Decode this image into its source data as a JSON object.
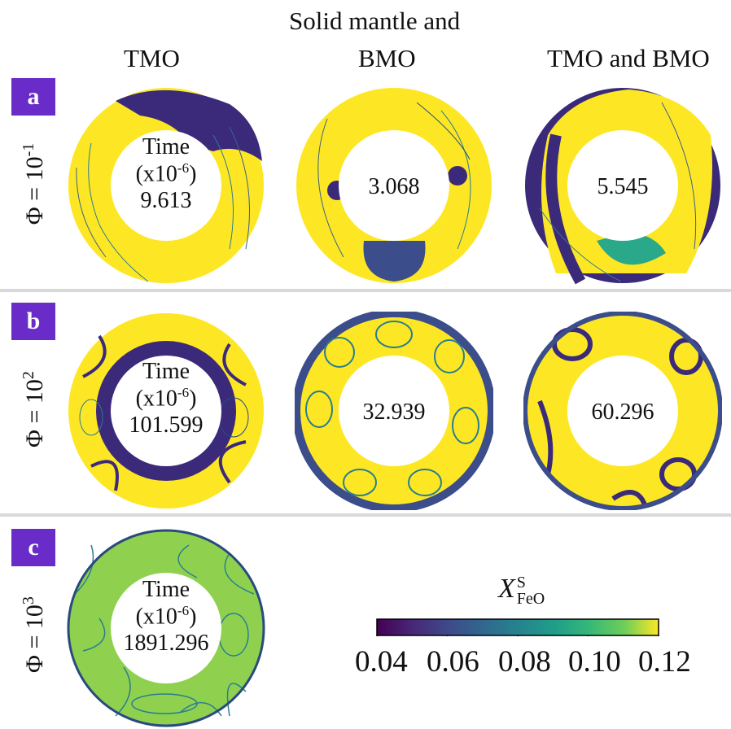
{
  "header": {
    "top_line": "Solid mantle and",
    "columns": [
      "TMO",
      "BMO",
      "TMO and BMO"
    ]
  },
  "rows": [
    {
      "label": "a",
      "phi_prefix": "Φ = 10",
      "phi_exp": "-1",
      "panels": [
        {
          "time_label": "Time",
          "time_units": "(x10",
          "time_units_exp": "-6",
          "time_units_close": ")",
          "value": "9.613"
        },
        {
          "value": "3.068"
        },
        {
          "value": "5.545"
        }
      ]
    },
    {
      "label": "b",
      "phi_prefix": "Φ = 10",
      "phi_exp": "2",
      "panels": [
        {
          "time_label": "Time",
          "time_units": "(x10",
          "time_units_exp": "-6",
          "time_units_close": ")",
          "value": "101.599"
        },
        {
          "value": "32.939"
        },
        {
          "value": "60.296"
        }
      ]
    },
    {
      "label": "c",
      "phi_prefix": "Φ = 10",
      "phi_exp": "3",
      "panels": [
        {
          "time_label": "Time",
          "time_units": "(x10",
          "time_units_exp": "-6",
          "time_units_close": ")",
          "value": "1891.296"
        }
      ]
    }
  ],
  "colorbar": {
    "label_main": "X",
    "label_sup": "S",
    "label_sub": "FeO",
    "ticks": [
      "0.04",
      "0.06",
      "0.08",
      "0.10",
      "0.12"
    ],
    "range": [
      0.04,
      0.12
    ],
    "colormap": "viridis"
  },
  "colors": {
    "panel_label_bg": "#6a2cc8",
    "ring_high": "#fde725",
    "ring_low": "#440154",
    "mid": "#21918c",
    "separator": "#d9d9d9"
  }
}
